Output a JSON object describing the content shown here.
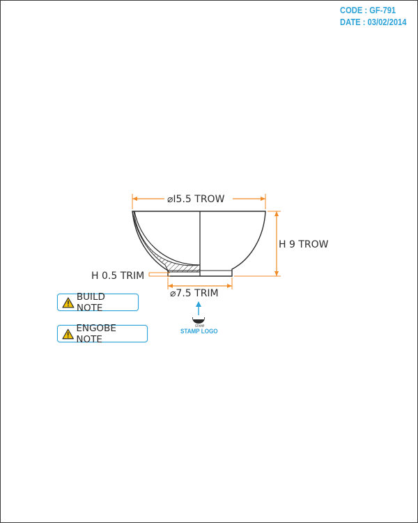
{
  "header": {
    "code": "CODE : GF-791",
    "date": "DATE : 03/02/2014"
  },
  "dimensions": {
    "top_diameter": "⌀I5.5 TROW",
    "height": "H 9 TROW",
    "trim_height": "H 0.5 TRIM",
    "base_diameter": "⌀7.5 TRIM"
  },
  "stamp": {
    "label": "STAMP LOGO",
    "icon": "stamp-logo-icon"
  },
  "notes": [
    {
      "label": "BUILD NOTE",
      "icon": "warning-icon"
    },
    {
      "label": "ENGOBE NOTE",
      "icon": "warning-icon"
    }
  ],
  "colors": {
    "accent": "#2aa2d8",
    "dimension_lines": "#f08a24",
    "outline": "#2a2a2a",
    "warning": "#f5c400"
  }
}
